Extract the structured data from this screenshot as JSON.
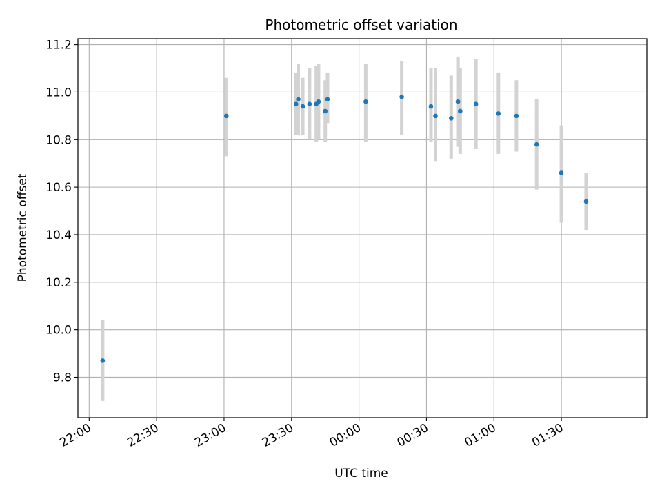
{
  "chart_data": {
    "type": "scatter",
    "title": "Photometric offset variation",
    "xlabel": "UTC time",
    "ylabel": "Photometric offset",
    "x_is_time": true,
    "x_range": [
      "21:55",
      "02:08"
    ],
    "ylim": [
      9.63,
      11.225
    ],
    "x_ticks": [
      "22:00",
      "22:30",
      "23:00",
      "23:30",
      "00:00",
      "00:30",
      "01:00",
      "01:30"
    ],
    "y_ticks": [
      9.8,
      10.0,
      10.2,
      10.4,
      10.6,
      10.8,
      11.0,
      11.2
    ],
    "grid": true,
    "legend": "none",
    "colors": {
      "point": "#1f77b4",
      "errorbar": "#d3d3d3",
      "grid": "#b0b0b0"
    },
    "points": [
      {
        "x": "22:06",
        "y": 9.87,
        "yerr": [
          9.7,
          10.04
        ]
      },
      {
        "x": "23:01",
        "y": 10.9,
        "yerr": [
          10.73,
          11.06
        ]
      },
      {
        "x": "23:32",
        "y": 10.95,
        "yerr": [
          10.82,
          11.08
        ]
      },
      {
        "x": "23:33",
        "y": 10.97,
        "yerr": [
          10.82,
          11.12
        ]
      },
      {
        "x": "23:35",
        "y": 10.94,
        "yerr": [
          10.82,
          11.06
        ]
      },
      {
        "x": "23:38",
        "y": 10.95,
        "yerr": [
          10.8,
          11.1
        ]
      },
      {
        "x": "23:41",
        "y": 10.95,
        "yerr": [
          10.79,
          11.11
        ]
      },
      {
        "x": "23:42",
        "y": 10.96,
        "yerr": [
          10.8,
          11.12
        ]
      },
      {
        "x": "23:45",
        "y": 10.92,
        "yerr": [
          10.79,
          11.05
        ]
      },
      {
        "x": "23:46",
        "y": 10.97,
        "yerr": [
          10.87,
          11.08
        ]
      },
      {
        "x": "00:03",
        "y": 10.96,
        "yerr": [
          10.79,
          11.12
        ]
      },
      {
        "x": "00:19",
        "y": 10.98,
        "yerr": [
          10.82,
          11.13
        ]
      },
      {
        "x": "00:32",
        "y": 10.94,
        "yerr": [
          10.79,
          11.1
        ]
      },
      {
        "x": "00:34",
        "y": 10.9,
        "yerr": [
          10.71,
          11.1
        ]
      },
      {
        "x": "00:41",
        "y": 10.89,
        "yerr": [
          10.72,
          11.07
        ]
      },
      {
        "x": "00:44",
        "y": 10.96,
        "yerr": [
          10.77,
          11.14
        ]
      },
      {
        "x": "00:44",
        "y": 10.96,
        "yerr": [
          10.77,
          11.15
        ]
      },
      {
        "x": "00:45",
        "y": 10.92,
        "yerr": [
          10.74,
          11.1
        ]
      },
      {
        "x": "00:52",
        "y": 10.95,
        "yerr": [
          10.76,
          11.14
        ]
      },
      {
        "x": "01:02",
        "y": 10.91,
        "yerr": [
          10.74,
          11.08
        ]
      },
      {
        "x": "01:10",
        "y": 10.9,
        "yerr": [
          10.75,
          11.05
        ]
      },
      {
        "x": "01:19",
        "y": 10.78,
        "yerr": [
          10.59,
          10.97
        ]
      },
      {
        "x": "01:30",
        "y": 10.66,
        "yerr": [
          10.45,
          10.86
        ]
      },
      {
        "x": "01:41",
        "y": 10.54,
        "yerr": [
          10.42,
          10.66
        ]
      }
    ]
  }
}
